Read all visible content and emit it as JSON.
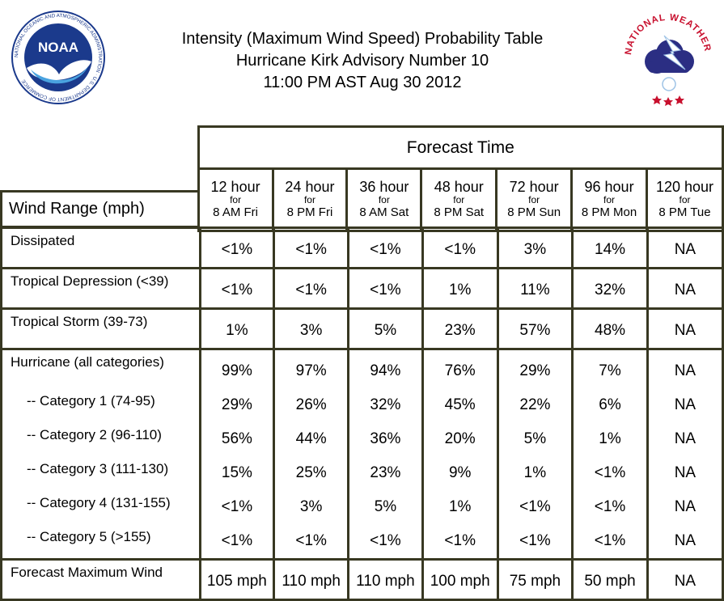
{
  "header": {
    "title_line1": "Intensity (Maximum Wind Speed) Probability Table",
    "title_line2": "Hurricane Kirk Advisory Number 10",
    "title_line3": "11:00 PM AST Aug 30 2012"
  },
  "logos": {
    "noaa": {
      "text": "NOAA",
      "ring_text": "NATIONAL OCEANIC AND ATMOSPHERIC ADMINISTRATION · U.S. DEPARTMENT OF COMMERCE",
      "icon": "noaa-seagull-icon"
    },
    "nws": {
      "ring_text": "NATIONAL WEATHER SERVICE",
      "icon": "nws-lightning-cloud-icon"
    }
  },
  "colors": {
    "border": "#383822",
    "noaa_blue": "#1b3a8c",
    "nws_red": "#c8102e",
    "nws_cloud": "#2b2e83"
  },
  "table": {
    "forecast_time_label": "Forecast Time",
    "wind_range_label": "Wind Range (mph)",
    "columns": [
      {
        "hour": "12 hour",
        "for": "for",
        "time": "8 AM Fri"
      },
      {
        "hour": "24 hour",
        "for": "for",
        "time": "8 PM Fri"
      },
      {
        "hour": "36 hour",
        "for": "for",
        "time": "8 AM Sat"
      },
      {
        "hour": "48 hour",
        "for": "for",
        "time": "8 PM Sat"
      },
      {
        "hour": "72 hour",
        "for": "for",
        "time": "8 PM Sun"
      },
      {
        "hour": "96 hour",
        "for": "for",
        "time": "8 PM Mon"
      },
      {
        "hour": "120 hour",
        "for": "for",
        "time": "8 PM Tue"
      }
    ],
    "rows": {
      "dissipated": {
        "label": "Dissipated",
        "values": [
          "<1%",
          "<1%",
          "<1%",
          "<1%",
          "3%",
          "14%",
          "NA"
        ]
      },
      "td": {
        "label": "Tropical Depression (<39)",
        "values": [
          "<1%",
          "<1%",
          "<1%",
          "1%",
          "11%",
          "32%",
          "NA"
        ]
      },
      "ts": {
        "label": "Tropical Storm (39-73)",
        "values": [
          "1%",
          "3%",
          "5%",
          "23%",
          "57%",
          "48%",
          "NA"
        ]
      },
      "hurricane": {
        "label": "Hurricane (all categories)",
        "values": [
          "99%",
          "97%",
          "94%",
          "76%",
          "29%",
          "7%",
          "NA"
        ]
      },
      "cat1": {
        "label": "-- Category 1 (74-95)",
        "values": [
          "29%",
          "26%",
          "32%",
          "45%",
          "22%",
          "6%",
          "NA"
        ]
      },
      "cat2": {
        "label": "-- Category 2 (96-110)",
        "values": [
          "56%",
          "44%",
          "36%",
          "20%",
          "5%",
          "1%",
          "NA"
        ]
      },
      "cat3": {
        "label": "-- Category 3 (111-130)",
        "values": [
          "15%",
          "25%",
          "23%",
          "9%",
          "1%",
          "<1%",
          "NA"
        ]
      },
      "cat4": {
        "label": "-- Category 4 (131-155)",
        "values": [
          "<1%",
          "3%",
          "5%",
          "1%",
          "<1%",
          "<1%",
          "NA"
        ]
      },
      "cat5": {
        "label": "-- Category 5 (>155)",
        "values": [
          "<1%",
          "<1%",
          "<1%",
          "<1%",
          "<1%",
          "<1%",
          "NA"
        ]
      },
      "max_wind": {
        "label": "Forecast Maximum Wind",
        "values": [
          "105 mph",
          "110 mph",
          "110 mph",
          "100 mph",
          "75 mph",
          "50 mph",
          "NA"
        ]
      }
    }
  }
}
